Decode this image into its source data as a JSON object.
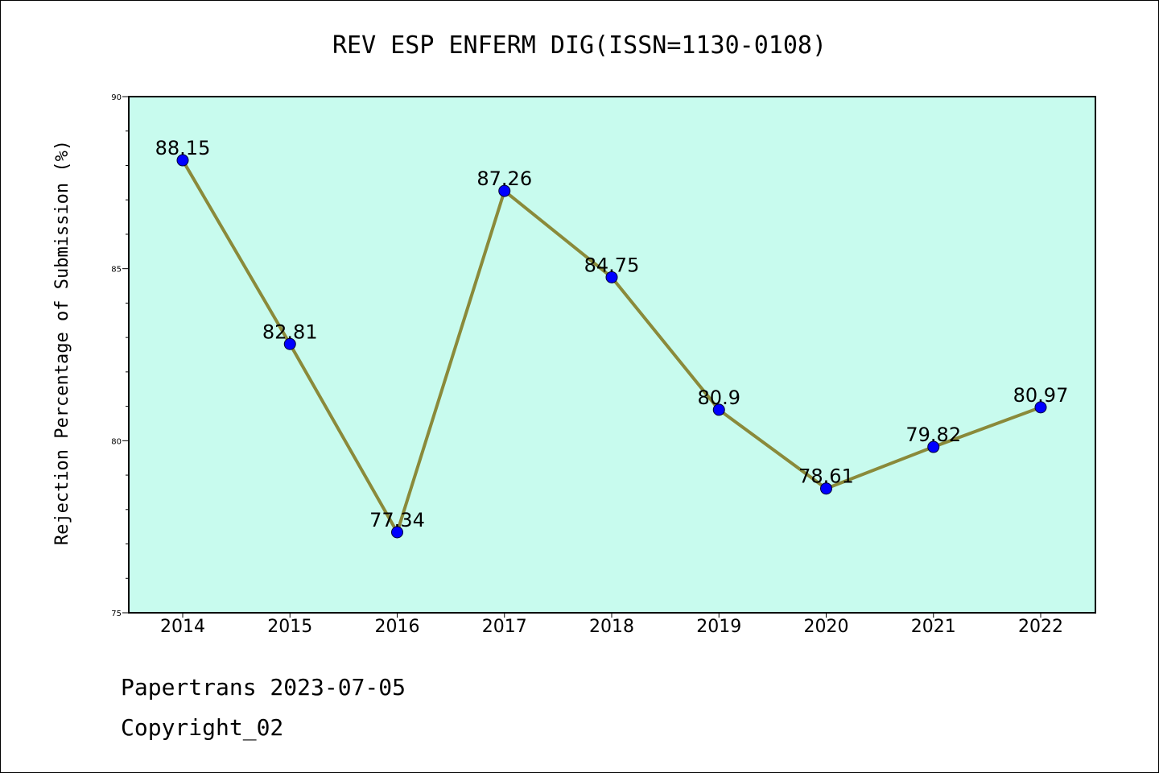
{
  "chart_data": {
    "type": "line",
    "title": "REV ESP ENFERM DIG(ISSN=1130-0108)",
    "xlabel": "",
    "ylabel": "Rejection Percentage of Submission (%)",
    "categories": [
      "2014",
      "2015",
      "2016",
      "2017",
      "2018",
      "2019",
      "2020",
      "2021",
      "2022"
    ],
    "series": [
      {
        "values": [
          88.15,
          82.81,
          77.34,
          87.26,
          84.75,
          80.9,
          78.61,
          79.82,
          80.97
        ],
        "labels": [
          "88.15",
          "82.81",
          "77.34",
          "87.26",
          "84.75",
          "80.9",
          "78.61",
          "79.82",
          "80.97"
        ]
      }
    ],
    "ylim": [
      75,
      90
    ],
    "yticks": [
      "75",
      "80",
      "85",
      "90"
    ],
    "grid": false,
    "colors": {
      "plot_background": "#c8fbee",
      "line": "#8a8a3a",
      "marker": "#0000ff"
    }
  },
  "footer": {
    "line1": "Papertrans 2023-07-05",
    "line2": "Copyright_02"
  }
}
